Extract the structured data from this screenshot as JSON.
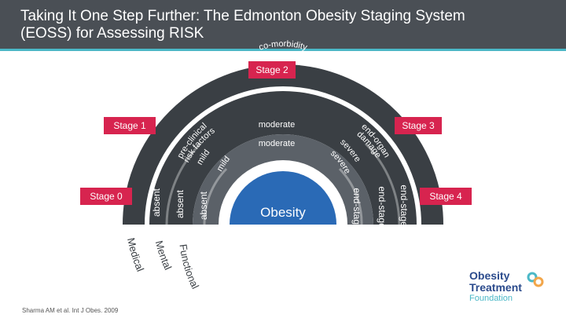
{
  "title": "Taking It One Step Further: The Edmonton Obesity Staging System\n(EOSS) for Assessing RISK",
  "stages": {
    "stage2": "Stage 2",
    "stage1": "Stage 1",
    "stage3": "Stage 3",
    "stage0": "Stage 0",
    "stage4": "Stage 4"
  },
  "arch": {
    "center": "Obesity",
    "comorbidity": "co-morbidity",
    "moderate_outer": "moderate",
    "moderate_inner": "moderate",
    "preclinical": "pre-clinical",
    "risk_factors": "risk factors",
    "mild_outer": "mild",
    "mild_inner": "mild",
    "absent1": "absent",
    "absent2": "absent",
    "absent3": "absent",
    "end_organ": "end-organ",
    "damage": "damage",
    "severe_outer": "severe",
    "severe_inner": "severe",
    "endstage1": "end-stage",
    "endstage2": "end-stage",
    "endstage3": "end-stage",
    "medical": "Medical",
    "mental": "Mental",
    "functional": "Functional"
  },
  "citation": "Sharma AM et al. Int J Obes. 2009",
  "logo": {
    "line1": "Obesity",
    "line2": "Treatment",
    "line3": "Foundation"
  },
  "colors": {
    "header_bg": "#4a4f55",
    "accent_teal": "#4bb8c7",
    "stage_red": "#d7244f",
    "arch_outer": "#3a3f44",
    "arch_inner": "#5b6168",
    "center_blue": "#2a6ab6"
  }
}
